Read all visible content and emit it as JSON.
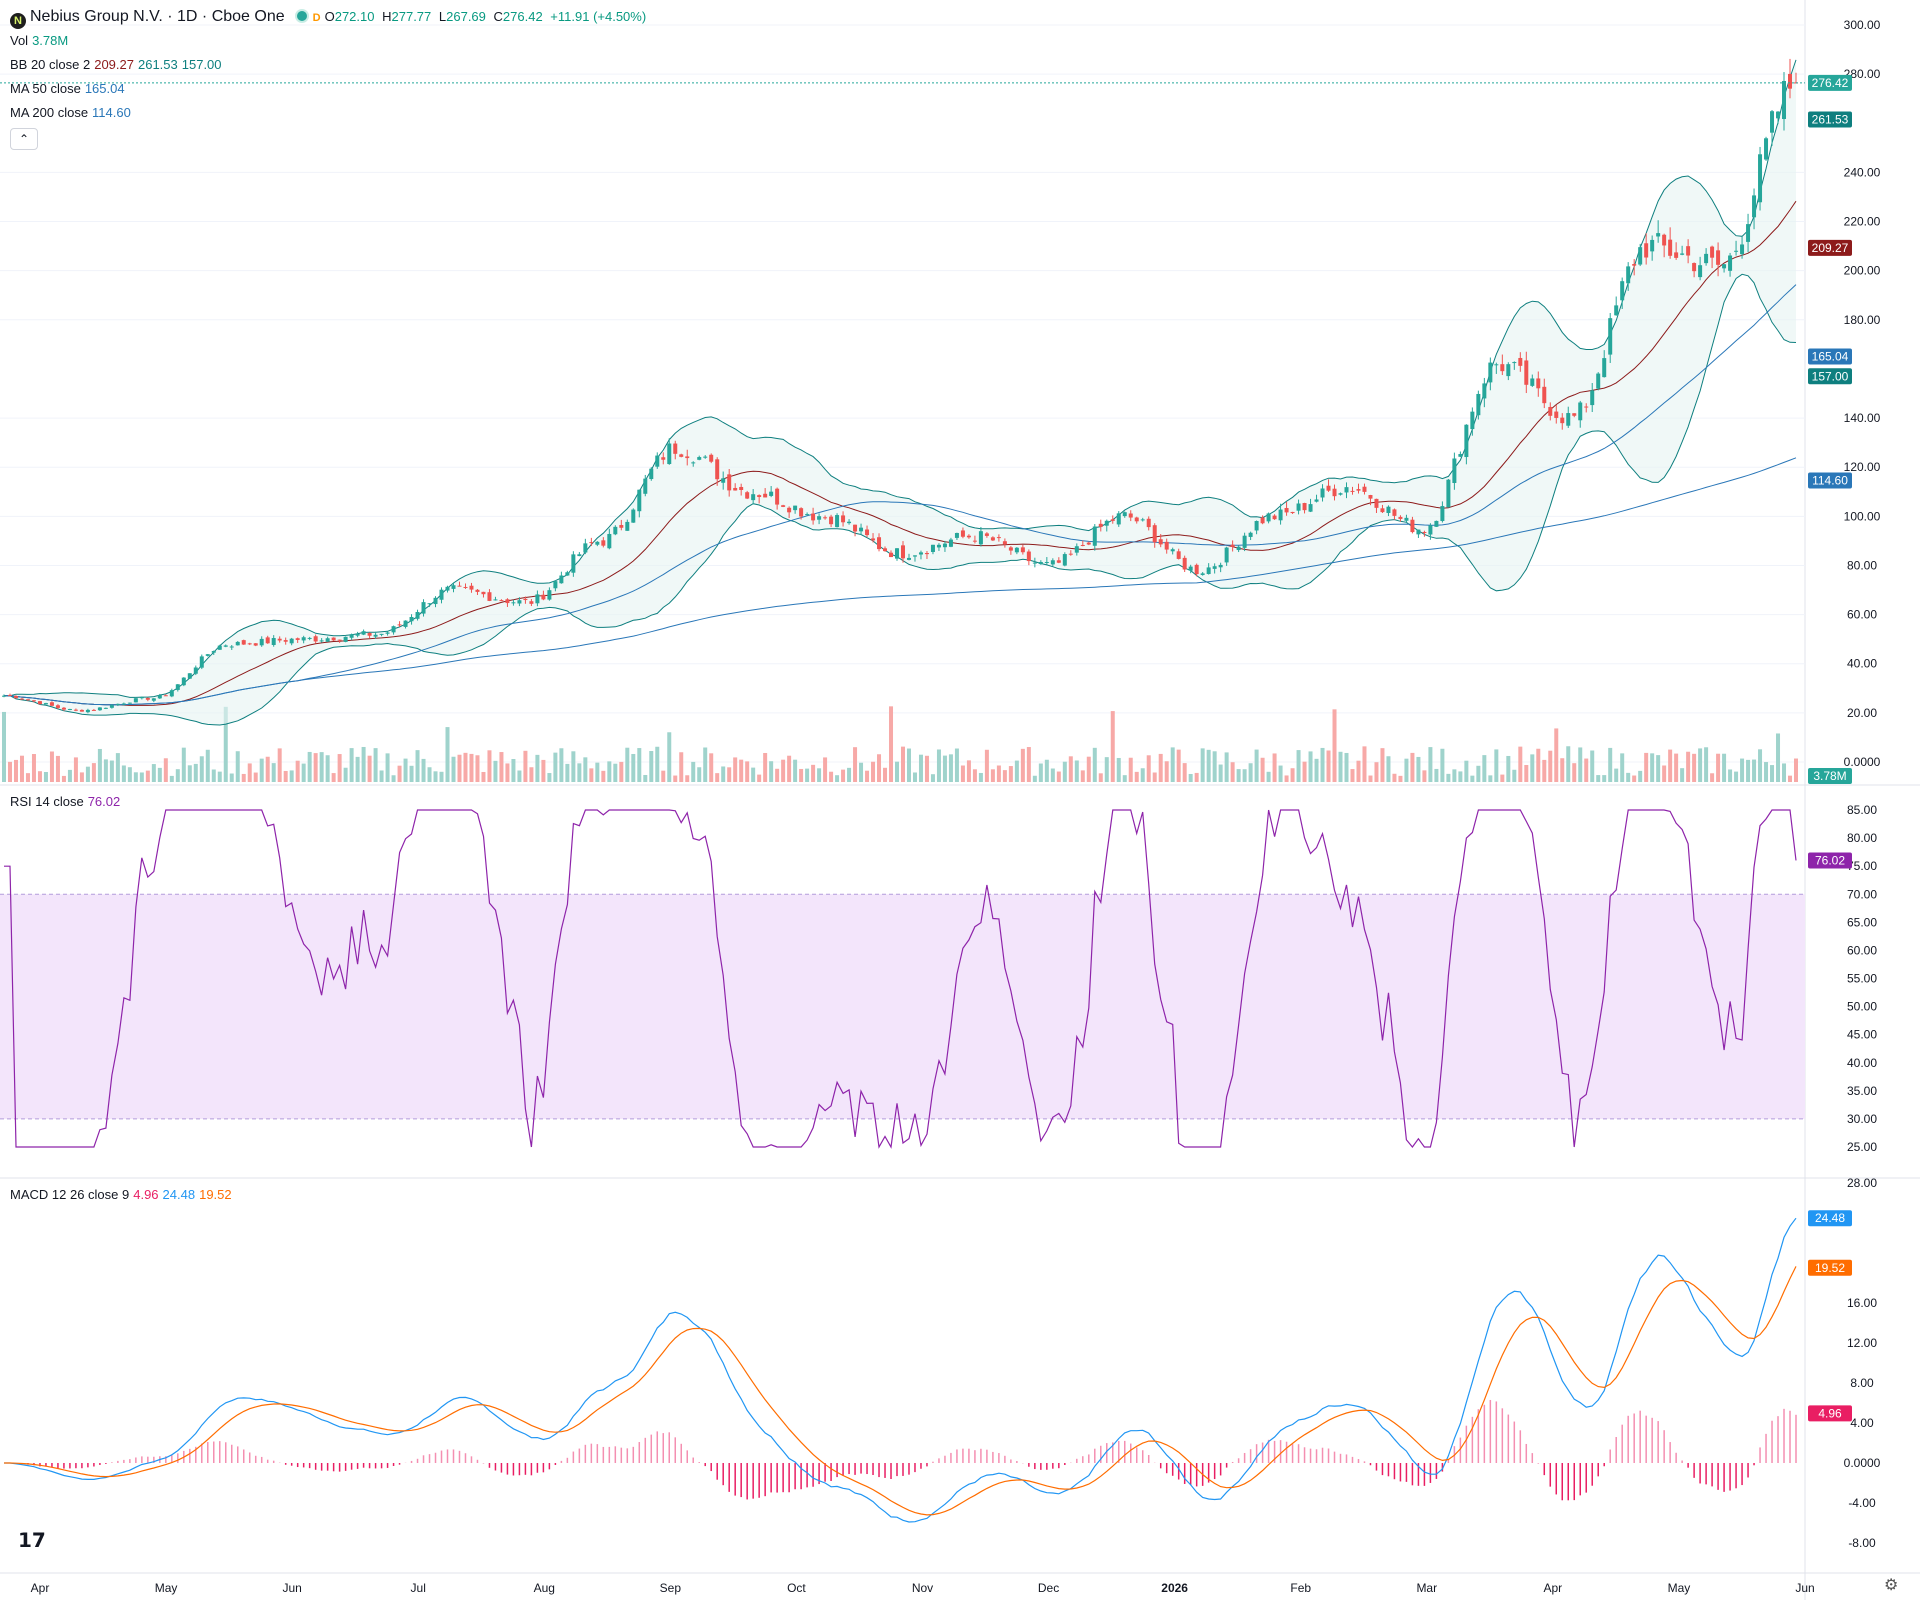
{
  "header": {
    "symbol": "Nebius Group N.V. · 1D · Cboe One",
    "icon_letter": "N",
    "flag": "D",
    "o_label": "O",
    "o": "272.10",
    "h_label": "H",
    "h": "277.77",
    "l_label": "L",
    "l": "267.69",
    "c_label": "C",
    "c": "276.42",
    "change": "+11.91 (+4.50%)"
  },
  "indicators": {
    "vol": {
      "label": "Vol",
      "value": "3.78M"
    },
    "bb": {
      "label": "BB 20 close 2",
      "basis": "209.27",
      "upper": "261.53",
      "lower": "157.00"
    },
    "ma50": {
      "label": "MA 50 close",
      "value": "165.04"
    },
    "ma200": {
      "label": "MA 200 close",
      "value": "114.60"
    },
    "rsi": {
      "label": "RSI 14 close",
      "value": "76.02"
    },
    "macd": {
      "label": "MACD 12 26 close 9",
      "hist": "4.96",
      "macd": "24.48",
      "signal": "19.52"
    }
  },
  "colors": {
    "up": "#26a69a",
    "down": "#ef5350",
    "bb_basis": "#8d1b1b",
    "bb_band": "#0e7f7f",
    "ma50": "#2a77b8",
    "ma200": "#2a77b8",
    "rsi": "#8e24aa",
    "macd": "#2196f3",
    "signal": "#ff6d00",
    "hist": "#e91e63"
  },
  "chart_data": [
    {
      "type": "candlestick",
      "title": "Nebius Group N.V. · 1D · Cboe One",
      "price_axis_ticks": [
        "300.00",
        "280.00",
        "240.00",
        "220.00",
        "200.00",
        "180.00",
        "140.00",
        "120.00",
        "100.00",
        "80.00",
        "60.00",
        "40.00",
        "20.00",
        "0.0000"
      ],
      "ylim": [
        0,
        300
      ],
      "x_tick_labels": [
        "Apr",
        "May",
        "Jun",
        "Jul",
        "Aug",
        "Sep",
        "Oct",
        "Nov",
        "Dec",
        "2026",
        "Feb",
        "Mar",
        "Apr",
        "May",
        "Jun"
      ],
      "last_price": 276.42,
      "price_path_anchors": [
        {
          "x": "Mar 2025",
          "close": 27
        },
        {
          "x": "Apr 2025",
          "close": 21
        },
        {
          "x": "May 2025",
          "close": 26
        },
        {
          "x": "Jun 2025",
          "close": 48
        },
        {
          "x": "Jul 2025",
          "close": 50
        },
        {
          "x": "Aug 2025",
          "close": 52
        },
        {
          "x": "Aug 2025 late",
          "close": 70
        },
        {
          "x": "Sep 2025 early",
          "close": 65
        },
        {
          "x": "Sep 2025",
          "close": 90
        },
        {
          "x": "Oct 2025",
          "close": 128
        },
        {
          "x": "Oct 2025 late",
          "close": 110
        },
        {
          "x": "Nov 2025",
          "close": 100
        },
        {
          "x": "Nov 2025 late",
          "close": 85
        },
        {
          "x": "Dec 2025",
          "close": 92
        },
        {
          "x": "Dec 2025 late",
          "close": 80
        },
        {
          "x": "Jan 2026",
          "close": 100
        },
        {
          "x": "Feb 2026",
          "close": 78
        },
        {
          "x": "Mar 2026",
          "close": 100
        },
        {
          "x": "Mar 2026 late",
          "close": 112
        },
        {
          "x": "Apr 2026",
          "close": 95
        },
        {
          "x": "Apr 2026 late",
          "close": 162
        },
        {
          "x": "May 2026",
          "close": 140
        },
        {
          "x": "May 2026 mid",
          "close": 210
        },
        {
          "x": "May 2026 late",
          "close": 202
        },
        {
          "x": "Jun 2026",
          "close": 276.42
        }
      ],
      "series": [
        {
          "name": "BB 20 close 2",
          "last": [
            209.27,
            261.53,
            157.0
          ]
        },
        {
          "name": "MA 50 close",
          "last": 165.04
        },
        {
          "name": "MA 200 close",
          "last": 114.6
        },
        {
          "name": "Vol",
          "last": "3.78M"
        }
      ]
    },
    {
      "type": "line",
      "title": "RSI 14 close",
      "ylim": [
        25,
        85
      ],
      "y_tick_labels": [
        "85.00",
        "80.00",
        "75.00",
        "70.00",
        "65.00",
        "60.00",
        "55.00",
        "50.00",
        "45.00",
        "40.00",
        "35.00",
        "30.00",
        "25.00"
      ],
      "bands": [
        30,
        70
      ],
      "last": 76.02
    },
    {
      "type": "line",
      "title": "MACD 12 26 close 9",
      "ylim": [
        -8,
        28
      ],
      "y_tick_labels": [
        "28.00",
        "16.00",
        "12.00",
        "8.00",
        "4.00",
        "0.0000",
        "-4.00",
        "-8.00"
      ],
      "series": [
        {
          "name": "MACD",
          "last": 24.48
        },
        {
          "name": "Signal",
          "last": 19.52
        },
        {
          "name": "Histogram",
          "last": 4.96
        }
      ]
    }
  ]
}
